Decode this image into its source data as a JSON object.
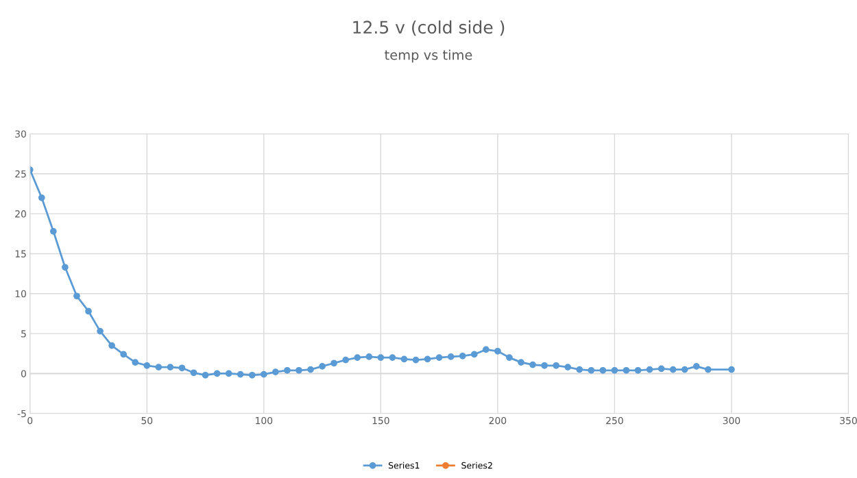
{
  "chart_data": {
    "type": "line",
    "title": "12.5 v (cold side )",
    "subtitle": "temp vs time",
    "x": [
      0,
      5,
      10,
      15,
      20,
      25,
      30,
      35,
      40,
      45,
      50,
      55,
      60,
      65,
      70,
      75,
      80,
      85,
      90,
      95,
      100,
      105,
      110,
      115,
      120,
      125,
      130,
      135,
      140,
      145,
      150,
      155,
      160,
      165,
      170,
      175,
      180,
      185,
      190,
      195,
      200,
      205,
      210,
      215,
      220,
      225,
      230,
      235,
      240,
      245,
      250,
      255,
      260,
      265,
      270,
      275,
      280,
      285,
      290,
      300
    ],
    "series": [
      {
        "name": "Series1",
        "color": "#5b9bd5",
        "values": [
          25.5,
          22,
          17.8,
          13.3,
          9.7,
          7.8,
          5.3,
          3.5,
          2.4,
          1.4,
          1.0,
          0.8,
          0.8,
          0.7,
          0.1,
          -0.2,
          0,
          0,
          -0.1,
          -0.2,
          -0.1,
          0.2,
          0.4,
          0.4,
          0.5,
          0.9,
          1.3,
          1.7,
          2.0,
          2.1,
          2.0,
          2.0,
          1.8,
          1.7,
          1.8,
          2.0,
          2.1,
          2.2,
          2.4,
          3.0,
          2.8,
          2.0,
          1.4,
          1.1,
          1.0,
          1.0,
          0.8,
          0.5,
          0.4,
          0.4,
          0.4,
          0.4,
          0.4,
          0.5,
          0.6,
          0.5,
          0.5,
          0.9,
          0.5,
          0.5
        ]
      },
      {
        "name": "Series2",
        "color": "#ed7d31",
        "values": [
          null,
          null,
          null,
          null,
          null,
          null,
          null,
          null,
          null,
          null,
          null,
          null,
          null,
          null,
          null,
          null,
          null,
          null,
          null,
          null,
          null,
          null,
          null,
          null,
          null,
          null,
          null,
          null,
          null,
          null,
          null,
          null,
          null,
          null,
          null,
          null,
          null,
          null,
          null,
          null,
          null,
          null,
          null,
          null,
          null,
          null,
          null,
          null,
          null,
          null,
          null,
          null,
          null,
          null,
          null,
          null,
          null,
          null,
          null,
          null
        ]
      }
    ],
    "xlim": [
      0,
      350
    ],
    "xticks": [
      0,
      50,
      100,
      150,
      200,
      250,
      300,
      350
    ],
    "ylim": [
      -5,
      30
    ],
    "yticks": [
      -5,
      0,
      5,
      10,
      15,
      20,
      25,
      30
    ],
    "grid": true,
    "legend": "bottom",
    "marker": "circle",
    "line_style": "solid"
  }
}
